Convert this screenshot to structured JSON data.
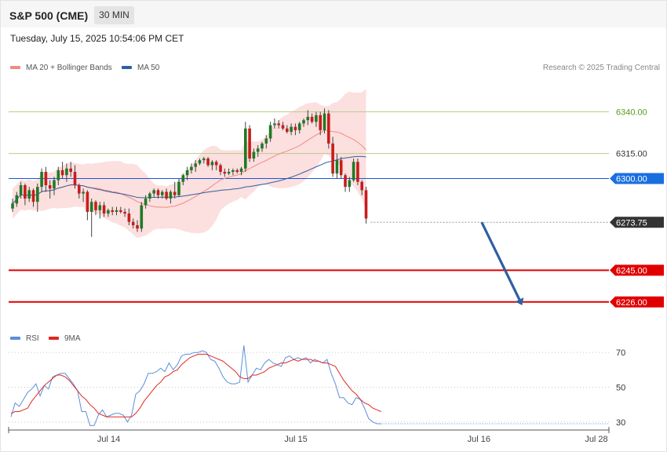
{
  "header": {
    "symbol": "S&P 500 (CME)",
    "interval": "30 MIN"
  },
  "timestamp": "Tuesday, July 15, 2025 10:54:06 PM CET",
  "legend": {
    "ma20": {
      "label": "MA 20 + Bollinger Bands",
      "color": "#f28b82"
    },
    "ma50": {
      "label": "MA 50",
      "color": "#2f5fa0"
    },
    "rsi": {
      "label": "RSI",
      "color": "#5b8fd9"
    },
    "rsi_ma": {
      "label": "9MA",
      "color": "#e0281f"
    }
  },
  "credit": "Research © 2025 Trading Central",
  "chart_data": [
    {
      "type": "candlestick",
      "ylim": [
        6200,
        6360
      ],
      "x_ticks": [
        {
          "label": "Jul 14",
          "i": 22
        },
        {
          "label": "Jul 15",
          "i": 67
        },
        {
          "label": "Jul 16",
          "i": 111
        },
        {
          "label": "Jul 28",
          "i": 122
        }
      ],
      "levels": [
        {
          "value": 6340.0,
          "label": "6340.00",
          "color": "#b5cf8a",
          "style": "solid",
          "tag": "text",
          "text_color": "#5a9a1a"
        },
        {
          "value": 6315.0,
          "label": "6315.00",
          "color": "#b5cf8a",
          "style": "solid",
          "tag": "text",
          "text_color": "#333"
        },
        {
          "value": 6300.0,
          "label": "6300.00",
          "color": "#1a56d6",
          "style": "solid",
          "tag": "box",
          "box_color": "#1a6fe0"
        },
        {
          "value": 6273.75,
          "label": "6273.75",
          "color": "#999999",
          "style": "dotted",
          "tag": "box",
          "box_color": "#333333"
        },
        {
          "value": 6245.0,
          "label": "6245.00",
          "color": "#e00000",
          "style": "solid",
          "tag": "box",
          "box_color": "#e00000"
        },
        {
          "value": 6226.0,
          "label": "6226.00",
          "color": "#e00000",
          "style": "solid",
          "tag": "box",
          "box_color": "#e00000"
        }
      ],
      "forecast_arrow": {
        "from": [
          6273.75,
          113
        ],
        "to": [
          6226,
          123
        ],
        "color": "#2f5fa0"
      },
      "candles": [
        [
          6282,
          6288,
          6280,
          6285
        ],
        [
          6285,
          6292,
          6283,
          6290
        ],
        [
          6290,
          6298,
          6288,
          6296
        ],
        [
          6296,
          6297,
          6284,
          6288
        ],
        [
          6288,
          6295,
          6286,
          6293
        ],
        [
          6293,
          6294,
          6283,
          6286
        ],
        [
          6286,
          6297,
          6280,
          6295
        ],
        [
          6295,
          6306,
          6292,
          6304
        ],
        [
          6304,
          6307,
          6292,
          6296
        ],
        [
          6296,
          6299,
          6288,
          6294
        ],
        [
          6294,
          6301,
          6290,
          6299
        ],
        [
          6299,
          6307,
          6296,
          6305
        ],
        [
          6305,
          6310,
          6300,
          6302
        ],
        [
          6302,
          6309,
          6298,
          6306
        ],
        [
          6306,
          6310,
          6301,
          6304
        ],
        [
          6304,
          6308,
          6294,
          6296
        ],
        [
          6296,
          6297,
          6288,
          6291
        ],
        [
          6291,
          6294,
          6286,
          6292
        ],
        [
          6292,
          6293,
          6275,
          6280
        ],
        [
          6280,
          6288,
          6265,
          6286
        ],
        [
          6286,
          6287,
          6278,
          6281
        ],
        [
          6281,
          6286,
          6276,
          6284
        ],
        [
          6284,
          6286,
          6277,
          6279
        ],
        [
          6279,
          6282,
          6277,
          6281
        ],
        [
          6281,
          6283,
          6278,
          6280
        ],
        [
          6280,
          6283,
          6278,
          6281
        ],
        [
          6281,
          6283,
          6279,
          6280
        ],
        [
          6280,
          6282,
          6277,
          6279
        ],
        [
          6279,
          6282,
          6272,
          6274
        ],
        [
          6274,
          6276,
          6270,
          6272
        ],
        [
          6272,
          6275,
          6268,
          6270
        ],
        [
          6270,
          6286,
          6268,
          6284
        ],
        [
          6284,
          6290,
          6282,
          6288
        ],
        [
          6288,
          6292,
          6286,
          6291
        ],
        [
          6291,
          6294,
          6289,
          6293
        ],
        [
          6293,
          6294,
          6288,
          6290
        ],
        [
          6290,
          6293,
          6288,
          6292
        ],
        [
          6292,
          6294,
          6287,
          6288
        ],
        [
          6288,
          6293,
          6285,
          6292
        ],
        [
          6292,
          6298,
          6288,
          6290
        ],
        [
          6290,
          6300,
          6289,
          6298
        ],
        [
          6298,
          6303,
          6296,
          6302
        ],
        [
          6302,
          6307,
          6299,
          6305
        ],
        [
          6305,
          6309,
          6303,
          6307
        ],
        [
          6307,
          6311,
          6304,
          6309
        ],
        [
          6309,
          6312,
          6308,
          6311
        ],
        [
          6311,
          6313,
          6309,
          6312
        ],
        [
          6312,
          6313,
          6307,
          6308
        ],
        [
          6308,
          6311,
          6305,
          6310
        ],
        [
          6310,
          6311,
          6305,
          6308
        ],
        [
          6308,
          6309,
          6302,
          6304
        ],
        [
          6304,
          6306,
          6301,
          6303
        ],
        [
          6303,
          6306,
          6302,
          6304
        ],
        [
          6304,
          6306,
          6302,
          6305
        ],
        [
          6305,
          6306,
          6303,
          6304
        ],
        [
          6304,
          6307,
          6302,
          6306
        ],
        [
          6306,
          6334,
          6304,
          6330
        ],
        [
          6330,
          6332,
          6310,
          6312
        ],
        [
          6312,
          6318,
          6310,
          6316
        ],
        [
          6316,
          6320,
          6313,
          6318
        ],
        [
          6318,
          6322,
          6316,
          6321
        ],
        [
          6321,
          6326,
          6318,
          6324
        ],
        [
          6324,
          6334,
          6322,
          6332
        ],
        [
          6332,
          6336,
          6330,
          6333
        ],
        [
          6333,
          6335,
          6330,
          6332
        ],
        [
          6332,
          6334,
          6329,
          6330
        ],
        [
          6330,
          6332,
          6327,
          6328
        ],
        [
          6328,
          6333,
          6326,
          6331
        ],
        [
          6331,
          6333,
          6326,
          6329
        ],
        [
          6329,
          6334,
          6327,
          6333
        ],
        [
          6333,
          6336,
          6331,
          6335
        ],
        [
          6335,
          6341,
          6332,
          6337
        ],
        [
          6337,
          6339,
          6333,
          6334
        ],
        [
          6334,
          6340,
          6331,
          6338
        ],
        [
          6338,
          6340,
          6326,
          6329
        ],
        [
          6329,
          6342,
          6327,
          6339
        ],
        [
          6339,
          6341,
          6318,
          6321
        ],
        [
          6321,
          6325,
          6301,
          6303
        ],
        [
          6303,
          6315,
          6300,
          6311
        ],
        [
          6311,
          6313,
          6300,
          6302
        ],
        [
          6302,
          6303,
          6292,
          6295
        ],
        [
          6295,
          6301,
          6292,
          6299
        ],
        [
          6299,
          6312,
          6298,
          6310
        ],
        [
          6310,
          6312,
          6296,
          6298
        ],
        [
          6298,
          6299,
          6290,
          6293
        ],
        [
          6293,
          6295,
          6273,
          6276
        ]
      ]
    },
    {
      "type": "line",
      "ylim": [
        20,
        80
      ],
      "y_ticks": [
        70,
        50,
        30
      ],
      "series": [
        {
          "name": "RSI",
          "values": [
            33,
            41,
            39,
            43,
            47,
            49,
            52,
            45,
            51,
            49,
            56,
            57,
            58,
            58,
            55,
            52,
            48,
            36,
            36,
            28,
            28,
            34,
            37,
            33,
            34,
            35,
            35,
            34,
            30,
            34,
            46,
            48,
            52,
            58,
            58,
            59,
            61,
            59,
            64,
            60,
            63,
            68,
            69,
            69,
            70,
            70,
            71,
            70,
            66,
            65,
            61,
            56,
            53,
            52,
            52,
            53,
            74,
            53,
            57,
            61,
            60,
            64,
            66,
            64,
            63,
            62,
            67,
            68,
            66,
            67,
            66,
            67,
            64,
            66,
            65,
            64,
            66,
            58,
            52,
            44,
            44,
            41,
            40,
            44,
            43,
            38,
            32,
            30,
            29,
            29
          ]
        },
        {
          "name": "9MA",
          "values": [
            35,
            36,
            36,
            37,
            38,
            42,
            45,
            48,
            51,
            53,
            55,
            57,
            57,
            56,
            54,
            51,
            48,
            45,
            43,
            40,
            38,
            35,
            34,
            33,
            33,
            33,
            33,
            33,
            33,
            33,
            35,
            38,
            42,
            45,
            48,
            51,
            53,
            56,
            57,
            59,
            60,
            63,
            65,
            67,
            68,
            69,
            69,
            69,
            68,
            67,
            66,
            65,
            63,
            61,
            59,
            56,
            55,
            55,
            57,
            57,
            58,
            59,
            61,
            62,
            63,
            64,
            64,
            65,
            66,
            65,
            66,
            66,
            66,
            65,
            65,
            64,
            64,
            63,
            62,
            58,
            54,
            51,
            48,
            46,
            43,
            41,
            40,
            38,
            37,
            36
          ]
        }
      ]
    }
  ]
}
